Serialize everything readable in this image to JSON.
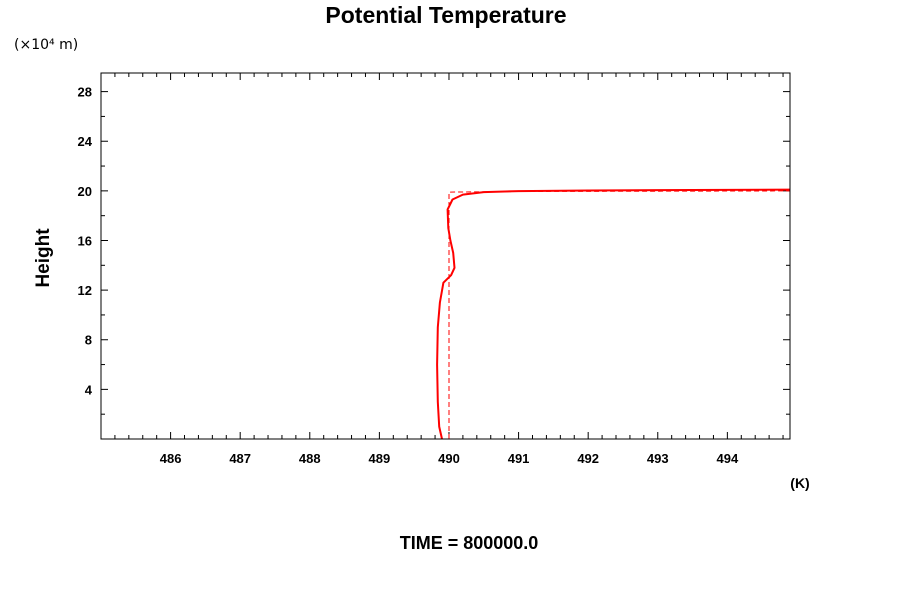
{
  "chart_data": {
    "type": "line",
    "title": "Potential Temperature",
    "ylabel": "Height",
    "y_unit": "(×10⁴ m)",
    "x_unit": "(K)",
    "xlim": [
      485.0,
      494.9
    ],
    "ylim": [
      0,
      29.5
    ],
    "x_ticks": [
      486,
      487,
      488,
      489,
      490,
      491,
      492,
      493,
      494
    ],
    "y_ticks": [
      4,
      8,
      12,
      16,
      20,
      24,
      28
    ],
    "grid": false,
    "series": [
      {
        "style": "solid",
        "color": "#ff0000",
        "points": [
          [
            489.9,
            0.0
          ],
          [
            489.86,
            1.0
          ],
          [
            489.84,
            3.0
          ],
          [
            489.83,
            6.0
          ],
          [
            489.84,
            9.0
          ],
          [
            489.87,
            11.0
          ],
          [
            489.92,
            12.6
          ],
          [
            490.03,
            13.2
          ],
          [
            490.08,
            13.8
          ],
          [
            490.06,
            15.0
          ],
          [
            490.02,
            16.0
          ],
          [
            489.99,
            17.0
          ],
          [
            489.98,
            18.5
          ],
          [
            490.05,
            19.3
          ],
          [
            490.2,
            19.7
          ],
          [
            490.5,
            19.9
          ],
          [
            491.0,
            19.98
          ],
          [
            492.0,
            20.03
          ],
          [
            493.0,
            20.06
          ],
          [
            494.0,
            20.08
          ],
          [
            494.9,
            20.1
          ]
        ]
      },
      {
        "style": "dashed",
        "color": "#ff0000",
        "points": [
          [
            490.0,
            0.0
          ],
          [
            490.0,
            19.9
          ],
          [
            491.0,
            19.95
          ],
          [
            494.9,
            20.0
          ]
        ]
      }
    ],
    "footer": "TIME = 800000.0"
  }
}
